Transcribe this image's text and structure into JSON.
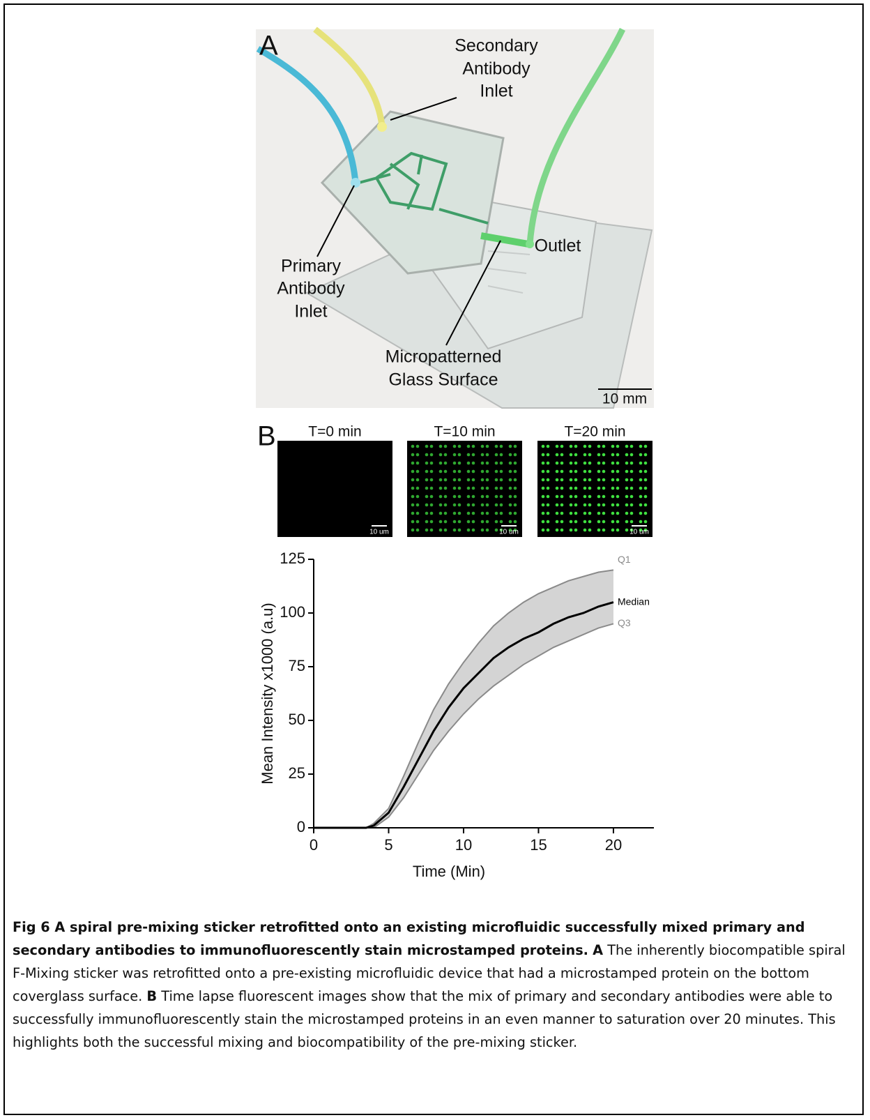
{
  "panel_a": {
    "label": "A",
    "secondary_inlet": {
      "lines": [
        "Secondary",
        "Antibody",
        "Inlet"
      ]
    },
    "primary_inlet": {
      "lines": [
        "Primary",
        "Antibody",
        "Inlet"
      ]
    },
    "outlet": "Outlet",
    "surface": {
      "lines": [
        "Micropatterned",
        "Glass Surface"
      ]
    },
    "scale_bar": "10 mm"
  },
  "panel_b": {
    "label": "B",
    "images": [
      {
        "title": "T=0 min",
        "scale_bar": "10 um"
      },
      {
        "title": "T=10 min",
        "scale_bar": "10 um"
      },
      {
        "title": "T=20 min",
        "scale_bar": "10 um"
      }
    ]
  },
  "chart_data": {
    "type": "line",
    "x_label": "Time (Min)",
    "y_label": "Mean Intensity x1000 (a.u)",
    "x": [
      0,
      3.5,
      4,
      5,
      6,
      7,
      8,
      9,
      10,
      11,
      12,
      13,
      14,
      15,
      16,
      17,
      18,
      19,
      20
    ],
    "series": [
      {
        "name": "Q1",
        "color": "#8a8a8a",
        "values": [
          0,
          0,
          2,
          9,
          24,
          40,
          55,
          67,
          77,
          86,
          94,
          100,
          105,
          109,
          112,
          115,
          117,
          119,
          120
        ]
      },
      {
        "name": "Median",
        "color": "#000000",
        "values": [
          0,
          0,
          1,
          7,
          19,
          32,
          45,
          56,
          65,
          72,
          79,
          84,
          88,
          91,
          95,
          98,
          100,
          103,
          105
        ]
      },
      {
        "name": "Q3",
        "color": "#8a8a8a",
        "values": [
          0,
          0,
          0,
          5,
          14,
          25,
          36,
          45,
          53,
          60,
          66,
          71,
          76,
          80,
          84,
          87,
          90,
          93,
          95
        ]
      }
    ],
    "band_color": "#d4d4d4",
    "xlim": [
      0,
      22.7
    ],
    "ylim": [
      0,
      125
    ],
    "xticks": [
      0,
      5,
      10,
      15,
      20
    ],
    "yticks": [
      0,
      25,
      50,
      75,
      100,
      125
    ]
  },
  "caption": {
    "title": "Fig 6 A spiral pre-mixing sticker retrofitted onto an existing microfluidic successfully mixed primary and secondary antibodies to immunofluorescently stain microstamped proteins.",
    "a_label": "A",
    "a_text": "The inherently biocompatible spiral F-Mixing sticker was retrofitted onto a pre-existing microfluidic device that had a microstamped protein on the bottom coverglass surface.",
    "b_label": "B",
    "b_text": "Time lapse fluorescent images show that the mix of primary and secondary antibodies were able to successfully immunofluorescently stain the microstamped proteins in an even manner to saturation over 20 minutes. This highlights both the successful mixing and biocompatibility of the pre-mixing sticker."
  }
}
